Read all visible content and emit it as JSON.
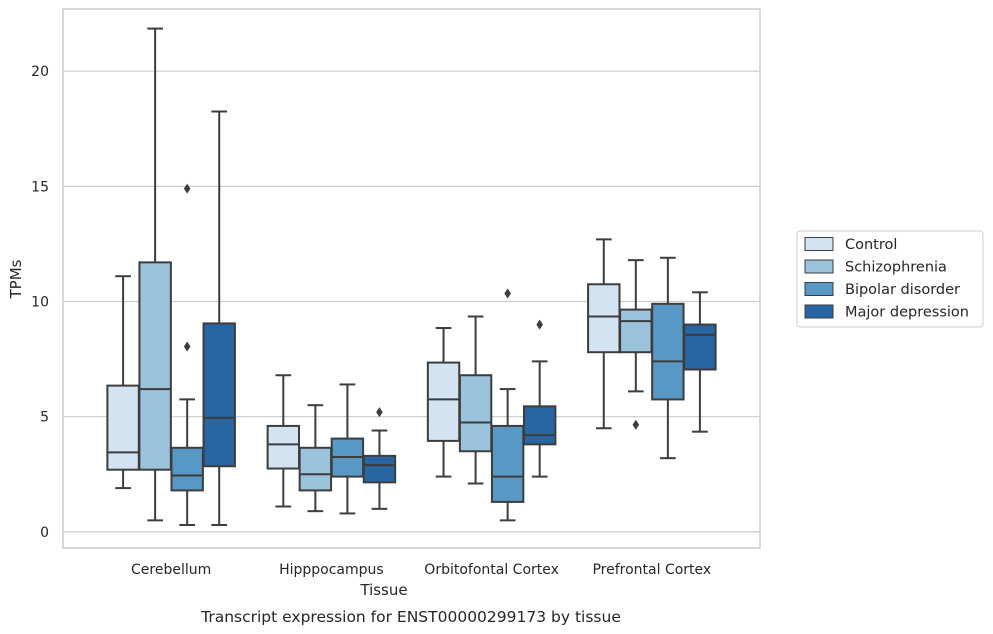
{
  "caption": "Transcript expression for ENST00000299173 by tissue",
  "chart_data": {
    "type": "box",
    "xlabel": "Tissue",
    "ylabel": "TPMs",
    "ylim": [
      -0.7,
      22.7
    ],
    "yticks": [
      0,
      5,
      10,
      15,
      20
    ],
    "grid": "horizontal",
    "legend_position": "right",
    "categories": [
      "Cerebellum",
      "Hipppocampus",
      "Orbitofontal Cortex",
      "Prefrontal Cortex"
    ],
    "series": [
      {
        "name": "Control",
        "color": "#d4e3f2",
        "boxes": [
          {
            "whislo": 1.9,
            "q1": 2.7,
            "med": 3.45,
            "q3": 6.35,
            "whishi": 11.1,
            "fliers": []
          },
          {
            "whislo": 1.1,
            "q1": 2.75,
            "med": 3.8,
            "q3": 4.6,
            "whishi": 6.8,
            "fliers": []
          },
          {
            "whislo": 2.4,
            "q1": 3.95,
            "med": 5.75,
            "q3": 7.35,
            "whishi": 8.85,
            "fliers": []
          },
          {
            "whislo": 4.5,
            "q1": 7.8,
            "med": 9.35,
            "q3": 10.75,
            "whishi": 12.7,
            "fliers": []
          }
        ]
      },
      {
        "name": "Schizophrenia",
        "color": "#9cc3dc",
        "boxes": [
          {
            "whislo": 0.5,
            "q1": 2.7,
            "med": 6.2,
            "q3": 11.7,
            "whishi": 21.85,
            "fliers": []
          },
          {
            "whislo": 0.9,
            "q1": 1.8,
            "med": 2.5,
            "q3": 3.65,
            "whishi": 5.5,
            "fliers": []
          },
          {
            "whislo": 2.1,
            "q1": 3.5,
            "med": 4.75,
            "q3": 6.8,
            "whishi": 9.35,
            "fliers": []
          },
          {
            "whislo": 6.1,
            "q1": 7.8,
            "med": 9.15,
            "q3": 9.65,
            "whishi": 11.8,
            "fliers": [
              4.65
            ]
          }
        ]
      },
      {
        "name": "Bipolar disorder",
        "color": "#5898c4",
        "boxes": [
          {
            "whislo": 0.3,
            "q1": 1.8,
            "med": 2.45,
            "q3": 3.65,
            "whishi": 5.75,
            "fliers": [
              8.05,
              14.9
            ]
          },
          {
            "whislo": 0.8,
            "q1": 2.4,
            "med": 3.25,
            "q3": 4.05,
            "whishi": 6.4,
            "fliers": []
          },
          {
            "whislo": 0.5,
            "q1": 1.3,
            "med": 2.4,
            "q3": 4.6,
            "whishi": 6.2,
            "fliers": [
              10.35
            ]
          },
          {
            "whislo": 3.2,
            "q1": 5.75,
            "med": 7.4,
            "q3": 9.9,
            "whishi": 11.9,
            "fliers": []
          }
        ]
      },
      {
        "name": "Major depression",
        "color": "#2765a3",
        "boxes": [
          {
            "whislo": 0.3,
            "q1": 2.85,
            "med": 4.95,
            "q3": 9.05,
            "whishi": 18.25,
            "fliers": []
          },
          {
            "whislo": 1.0,
            "q1": 2.15,
            "med": 2.9,
            "q3": 3.3,
            "whishi": 4.4,
            "fliers": [
              5.2
            ]
          },
          {
            "whislo": 2.4,
            "q1": 3.8,
            "med": 4.2,
            "q3": 5.45,
            "whishi": 7.4,
            "fliers": [
              9.0
            ]
          },
          {
            "whislo": 4.35,
            "q1": 7.05,
            "med": 8.55,
            "q3": 9.0,
            "whishi": 10.4,
            "fliers": []
          }
        ]
      }
    ]
  }
}
